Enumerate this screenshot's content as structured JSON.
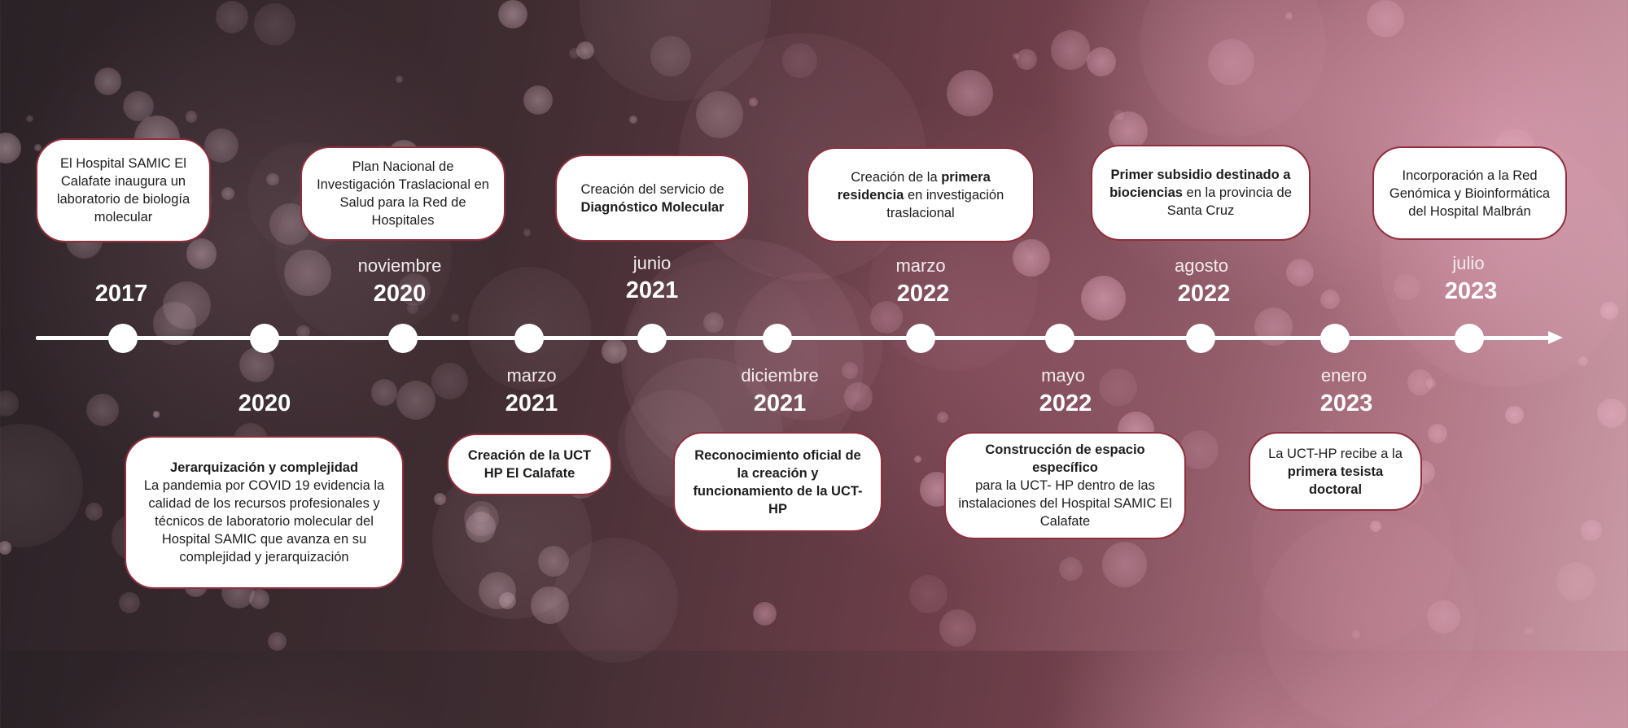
{
  "events": [
    {
      "year": "2017",
      "month": "",
      "text_parts": [
        {
          "t": "El Hospital SAMIC El Calafate inaugura un laboratorio de biología molecular",
          "b": false
        }
      ]
    },
    {
      "year": "2020",
      "month": "",
      "text_parts": [
        {
          "t": "Jerarquización y complejidad",
          "b": true,
          "br": true
        },
        {
          "t": "La pandemia por COVID 19 evidencia la calidad de los recursos profesionales y técnicos de laboratorio molecular del Hospital SAMIC que avanza en su complejidad y jerarquización",
          "b": false
        }
      ]
    },
    {
      "year": "2020",
      "month": "noviembre",
      "text_parts": [
        {
          "t": "Plan Nacional de Investigación Traslacional en Salud para la Red de Hospitales",
          "b": false
        }
      ]
    },
    {
      "year": "2021",
      "month": "marzo",
      "text_parts": [
        {
          "t": "Creación de la UCT HP El Calafate",
          "b": true
        }
      ]
    },
    {
      "year": "2021",
      "month": "junio",
      "text_parts": [
        {
          "t": "Creación del servicio de ",
          "b": false
        },
        {
          "t": "Diagnóstico Molecular",
          "b": true
        }
      ]
    },
    {
      "year": "2021",
      "month": "diciembre",
      "text_parts": [
        {
          "t": "Reconocimiento oficial de la creación y funcionamiento de la UCT-HP",
          "b": true
        }
      ]
    },
    {
      "year": "2022",
      "month": "marzo",
      "text_parts": [
        {
          "t": "Creación de la ",
          "b": false
        },
        {
          "t": "primera residencia",
          "b": true
        },
        {
          "t": " en investigación traslacional",
          "b": false
        }
      ]
    },
    {
      "year": "2022",
      "month": "mayo",
      "text_parts": [
        {
          "t": "Construcción de espacio específico",
          "b": true,
          "br": true
        },
        {
          "t": "para la UCT- HP dentro de las instalaciones del Hospital SAMIC El Calafate",
          "b": false
        }
      ]
    },
    {
      "year": "2022",
      "month": "agosto",
      "text_parts": [
        {
          "t": "Primer subsidio destinado a biociencias",
          "b": true
        },
        {
          "t": " en la provincia de Santa Cruz",
          "b": false
        }
      ]
    },
    {
      "year": "2023",
      "month": "enero",
      "text_parts": [
        {
          "t": "La UCT-HP recibe a la ",
          "b": false
        },
        {
          "t": "primera tesista doctoral",
          "b": true
        }
      ]
    },
    {
      "year": "2023",
      "month": "julio",
      "text_parts": [
        {
          "t": "Incorporación a la Red Genómica y Bioinformática del Hospital Malbrán",
          "b": false
        }
      ]
    }
  ],
  "colors": {
    "box_border": "#8f2f3d",
    "box_fill": "#ffffff",
    "line": "#ffffff",
    "background": "#4a3238"
  }
}
